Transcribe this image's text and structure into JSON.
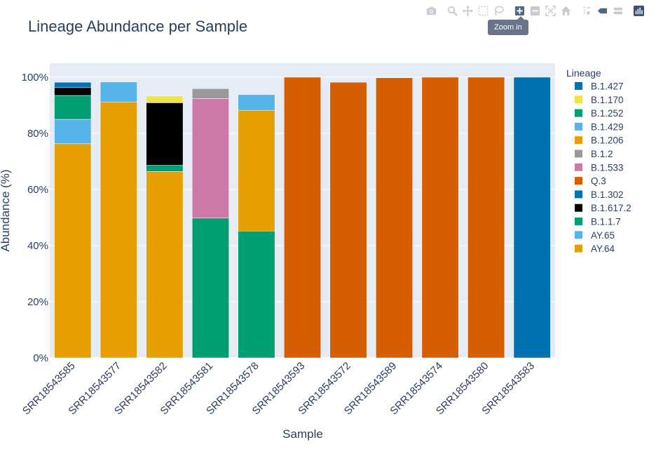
{
  "modebar": {
    "buttons": [
      {
        "name": "camera-icon",
        "label": "Download plot as a png"
      },
      {
        "name": "zoom-icon",
        "label": "Zoom"
      },
      {
        "name": "pan-icon",
        "label": "Pan"
      },
      {
        "name": "box-select-icon",
        "label": "Box Select"
      },
      {
        "name": "lasso-select-icon",
        "label": "Lasso Select"
      },
      {
        "name": "zoom-in-icon",
        "label": "Zoom in"
      },
      {
        "name": "zoom-out-icon",
        "label": "Zoom out"
      },
      {
        "name": "autoscale-icon",
        "label": "Autoscale"
      },
      {
        "name": "reset-axes-icon",
        "label": "Reset axes"
      },
      {
        "name": "spikelines-icon",
        "label": "Toggle Spike Lines"
      },
      {
        "name": "hover-closest-icon",
        "label": "Show closest data on hover"
      },
      {
        "name": "hover-compare-icon",
        "label": "Compare data on hover"
      },
      {
        "name": "plotly-logo-icon",
        "label": "Produced with Plotly"
      }
    ],
    "tooltip": "Zoom in"
  },
  "chart_data": {
    "type": "bar",
    "stacked": true,
    "title": "Lineage Abundance per Sample",
    "xlabel": "Sample",
    "ylabel": "Abundance (%)",
    "ylim": [
      0,
      105
    ],
    "yticks": [
      0,
      20,
      40,
      60,
      80,
      100
    ],
    "ytick_labels": [
      "0%",
      "20%",
      "40%",
      "60%",
      "80%",
      "100%"
    ],
    "legend_title": "Lineage",
    "categories": [
      "SRR18543585",
      "SRR18543577",
      "SRR18543582",
      "SRR18543581",
      "SRR18543578",
      "SRR18543593",
      "SRR18543572",
      "SRR18543589",
      "SRR18543574",
      "SRR18543580",
      "SRR18543583"
    ],
    "series": [
      {
        "name": "AY.64",
        "color": "#E69F00",
        "values": [
          76.3,
          91.2,
          66.4,
          null,
          null,
          null,
          null,
          null,
          null,
          null,
          null
        ]
      },
      {
        "name": "AY.65",
        "color": "#56B4E9",
        "values": [
          8.7,
          7.1,
          null,
          null,
          null,
          null,
          null,
          null,
          null,
          null,
          null
        ]
      },
      {
        "name": "B.1.1.7",
        "color": "#009E73",
        "values": [
          8.5,
          null,
          2.2,
          49.8,
          45.2,
          null,
          null,
          null,
          null,
          null,
          null
        ]
      },
      {
        "name": "B.1.617.2",
        "color": "#000000",
        "values": [
          2.8,
          null,
          22.3,
          null,
          null,
          null,
          null,
          null,
          null,
          null,
          null
        ]
      },
      {
        "name": "B.1.302",
        "color": "#0072B2",
        "values": [
          1.9,
          null,
          null,
          null,
          null,
          null,
          null,
          null,
          null,
          null,
          100.0
        ]
      },
      {
        "name": "Q.3",
        "color": "#D55E00",
        "values": [
          null,
          null,
          null,
          null,
          null,
          100.0,
          98.2,
          99.8,
          100.0,
          100.0,
          null
        ]
      },
      {
        "name": "B.1.533",
        "color": "#CC79A7",
        "values": [
          null,
          null,
          null,
          42.6,
          null,
          null,
          null,
          null,
          null,
          null,
          null
        ]
      },
      {
        "name": "B.1.2",
        "color": "#999999",
        "values": [
          null,
          null,
          null,
          3.5,
          null,
          null,
          null,
          null,
          null,
          null,
          null
        ]
      },
      {
        "name": "B.1.206",
        "color": "#E69F00",
        "values": [
          null,
          null,
          null,
          null,
          43.0,
          null,
          null,
          null,
          null,
          null,
          null
        ]
      },
      {
        "name": "B.1.429",
        "color": "#56B4E9",
        "values": [
          null,
          null,
          null,
          null,
          5.6,
          null,
          null,
          null,
          null,
          null,
          null
        ]
      },
      {
        "name": "B.1.252",
        "color": "#009E73",
        "values": [
          null,
          null,
          null,
          null,
          null,
          null,
          null,
          null,
          null,
          null,
          null
        ]
      },
      {
        "name": "B.1.170",
        "color": "#F0E442",
        "values": [
          null,
          null,
          2.4,
          null,
          null,
          null,
          null,
          null,
          null,
          null,
          null
        ]
      },
      {
        "name": "B.1.427",
        "color": "#0072B2",
        "values": [
          null,
          null,
          null,
          null,
          null,
          null,
          null,
          null,
          null,
          null,
          null
        ]
      }
    ]
  }
}
